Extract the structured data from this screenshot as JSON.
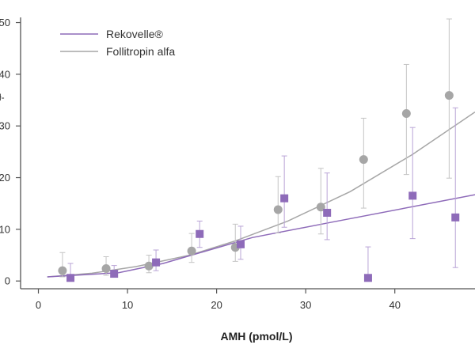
{
  "chart_data": {
    "type": "scatter",
    "xlabel": "AMH (pmol/L)",
    "ylabel": "",
    "xlim": [
      -2,
      49
    ],
    "ylim": [
      -1.5,
      51
    ],
    "xticks": [
      0,
      10,
      20,
      30,
      40
    ],
    "yticks": [
      0,
      10,
      20,
      30,
      40,
      50
    ],
    "ytick_labels": [
      "0",
      "10",
      "20",
      "30",
      "40",
      "50"
    ],
    "grid": false,
    "legend_position": "top-left",
    "series": [
      {
        "name": "Rekovelle®",
        "marker": "square",
        "color": "#8e6bb9",
        "points": [
          {
            "x": 3.6,
            "y": 0.6,
            "lo": 0.0,
            "hi": 3.4
          },
          {
            "x": 8.5,
            "y": 1.4,
            "lo": 0.9,
            "hi": 3.0
          },
          {
            "x": 13.2,
            "y": 3.6,
            "lo": 2.0,
            "hi": 6.0
          },
          {
            "x": 18.1,
            "y": 9.1,
            "lo": 6.5,
            "hi": 11.6
          },
          {
            "x": 22.7,
            "y": 7.1,
            "lo": 4.2,
            "hi": 10.6
          },
          {
            "x": 27.6,
            "y": 16.0,
            "lo": 10.4,
            "hi": 24.2
          },
          {
            "x": 32.4,
            "y": 13.2,
            "lo": 8.0,
            "hi": 20.9
          },
          {
            "x": 37.0,
            "y": 0.6,
            "lo": 0.6,
            "hi": 6.6
          },
          {
            "x": 42.0,
            "y": 16.5,
            "lo": 8.2,
            "hi": 29.7
          },
          {
            "x": 46.8,
            "y": 12.3,
            "lo": 2.6,
            "hi": 33.5
          }
        ],
        "trend": {
          "x": [
            1,
            9,
            14,
            18,
            24,
            33,
            49
          ],
          "y": [
            0.8,
            1.6,
            3.4,
            5.4,
            8.4,
            11.4,
            16.7
          ]
        }
      },
      {
        "name": "Follitropin alfa",
        "marker": "circle",
        "color": "#a6a6a6",
        "points": [
          {
            "x": 2.7,
            "y": 2.0,
            "lo": 0.8,
            "hi": 5.5
          },
          {
            "x": 7.6,
            "y": 2.4,
            "lo": 1.1,
            "hi": 4.7
          },
          {
            "x": 12.4,
            "y": 2.9,
            "lo": 1.6,
            "hi": 5.0
          },
          {
            "x": 17.2,
            "y": 5.8,
            "lo": 3.6,
            "hi": 9.2
          },
          {
            "x": 22.1,
            "y": 6.5,
            "lo": 3.8,
            "hi": 11.0
          },
          {
            "x": 26.9,
            "y": 13.8,
            "lo": 9.3,
            "hi": 20.2
          },
          {
            "x": 31.7,
            "y": 14.3,
            "lo": 9.1,
            "hi": 21.8
          },
          {
            "x": 36.5,
            "y": 23.5,
            "lo": 14.1,
            "hi": 31.5
          },
          {
            "x": 41.3,
            "y": 32.4,
            "lo": 20.6,
            "hi": 41.9
          },
          {
            "x": 46.1,
            "y": 35.9,
            "lo": 19.9,
            "hi": 50.7
          }
        ],
        "trend": {
          "x": [
            1,
            6,
            11,
            17,
            22,
            28,
            35,
            42,
            49
          ],
          "y": [
            0.8,
            1.5,
            2.8,
            5.0,
            7.7,
            11.6,
            17.3,
            24.5,
            32.7
          ]
        }
      }
    ]
  },
  "partial_labels": {
    "y_title_fragment": "ƚ-"
  }
}
